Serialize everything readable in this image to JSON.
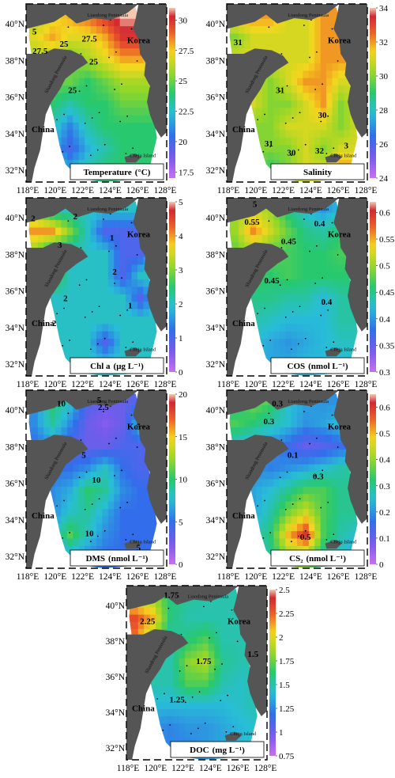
{
  "chart_data": [
    {
      "type": "heatmap",
      "title": "Temperature (°C)",
      "title_main": "Temperature",
      "title_unit": "(°C)",
      "xticks": [
        "118°E",
        "120°E",
        "122°E",
        "124°E",
        "126°E",
        "128°E"
      ],
      "yticks": [
        "40°N",
        "38°N",
        "36°N",
        "34°N",
        "32°N"
      ],
      "colorbar_ticks": [
        "17.5",
        "20",
        "22.5",
        "25",
        "27.5",
        "30"
      ],
      "colorbar_range": [
        17,
        31
      ],
      "contour_labels": [
        "5",
        "27.5",
        "25",
        "27.5",
        "25",
        "25"
      ],
      "grid": [
        [
          26,
          27,
          28,
          29,
          30,
          31,
          31,
          29
        ],
        [
          27,
          28,
          27,
          27,
          28,
          30,
          30,
          28
        ],
        [
          26,
          26,
          25,
          26,
          27,
          28,
          28,
          27
        ],
        [
          25,
          25,
          25,
          24,
          25,
          26,
          26,
          26
        ],
        [
          24,
          24,
          23,
          24,
          24,
          25,
          25,
          25
        ],
        [
          24,
          23,
          21,
          23,
          24,
          24,
          24,
          24
        ],
        [
          24,
          22,
          20,
          22,
          23,
          24,
          24,
          24
        ],
        [
          24,
          23,
          22,
          23,
          24,
          24,
          24,
          24
        ]
      ],
      "places": [
        "Korea",
        "China",
        "Liaodong Peninsula",
        "Shandong Peninsula",
        "Cheju Island"
      ]
    },
    {
      "type": "heatmap",
      "title": "Salinity",
      "title_main": "Salinity",
      "title_unit": "",
      "xticks": [
        "118°E",
        "120°E",
        "122°E",
        "124°E",
        "126°E",
        "128°E"
      ],
      "yticks": [
        "40°N",
        "38°N",
        "36°N",
        "34°N",
        "32°N"
      ],
      "colorbar_ticks": [
        "24",
        "26",
        "28",
        "30",
        "32",
        "34"
      ],
      "colorbar_range": [
        24,
        34
      ],
      "contour_labels": [
        "31",
        "31",
        "30",
        "31",
        "30",
        "32",
        "3"
      ],
      "grid": [
        [
          32,
          32,
          32,
          31,
          31,
          32,
          32,
          32
        ],
        [
          30,
          31,
          31,
          31,
          31,
          32,
          32,
          32
        ],
        [
          31,
          31,
          31,
          31,
          31,
          32,
          32,
          32
        ],
        [
          31,
          31,
          30,
          31,
          32,
          32,
          31,
          31
        ],
        [
          31,
          31,
          30,
          30,
          31,
          32,
          30,
          31
        ],
        [
          31,
          30,
          30,
          31,
          31,
          31,
          30,
          31
        ],
        [
          31,
          30,
          30,
          30,
          31,
          30,
          31,
          31
        ],
        [
          31,
          30,
          29,
          30,
          31,
          31,
          32,
          32
        ]
      ],
      "places": [
        "Korea",
        "China",
        "Liaodong Peninsula",
        "Shandong Peninsula",
        "Cheju Island"
      ]
    },
    {
      "type": "heatmap",
      "title": "Chl a (μg L⁻¹)",
      "title_main": "Chl a",
      "title_unit": "(μg L⁻¹)",
      "xticks": [
        "118°E",
        "120°E",
        "122°E",
        "124°E",
        "126°E",
        "128°E"
      ],
      "yticks": [
        "40°N",
        "38°N",
        "36°N",
        "34°N",
        "32°N"
      ],
      "colorbar_ticks": [
        "0",
        "1",
        "2",
        "3",
        "4",
        "5"
      ],
      "colorbar_range": [
        0,
        5
      ],
      "contour_labels": [
        "2",
        "3",
        "2",
        "1",
        "2",
        "2",
        "1",
        "2",
        "2"
      ],
      "grid": [
        [
          3,
          2,
          2,
          2,
          2,
          2,
          2,
          2
        ],
        [
          4,
          4,
          3,
          2,
          1,
          1,
          1,
          2
        ],
        [
          3,
          2,
          2,
          2,
          2,
          1,
          1,
          2
        ],
        [
          3,
          3,
          2,
          2,
          2,
          1,
          2,
          2
        ],
        [
          2,
          2,
          2,
          2,
          2,
          2,
          1,
          2
        ],
        [
          2,
          2,
          2,
          2,
          2,
          2,
          2,
          2
        ],
        [
          2,
          2,
          2,
          2,
          1,
          2,
          2,
          2
        ],
        [
          2,
          2,
          2,
          2,
          2,
          2,
          2,
          2
        ]
      ],
      "places": [
        "Korea",
        "China",
        "Liaodong Peninsula",
        "Shandong Peninsula",
        "Cheju Island"
      ]
    },
    {
      "type": "heatmap",
      "title": "COS (nmol L⁻¹)",
      "title_main": "COS",
      "title_unit": "(nmol L⁻¹)",
      "xticks": [
        "118°E",
        "120°E",
        "122°E",
        "124°E",
        "126°E",
        "128°E"
      ],
      "yticks": [
        "40°N",
        "38°N",
        "36°N",
        "34°N",
        "32°N"
      ],
      "colorbar_ticks": [
        "0.3",
        "0.35",
        "0.4",
        "0.45",
        "0.5",
        "0.55",
        "0.6"
      ],
      "colorbar_range": [
        0.3,
        0.62
      ],
      "contour_labels": [
        "5",
        "0.55",
        "0.4",
        "0.45",
        "0.45",
        "0.4"
      ],
      "grid": [
        [
          0.5,
          0.52,
          0.5,
          0.45,
          0.42,
          0.4,
          0.42,
          0.44
        ],
        [
          0.5,
          0.56,
          0.52,
          0.48,
          0.45,
          0.44,
          0.46,
          0.46
        ],
        [
          0.48,
          0.5,
          0.48,
          0.47,
          0.46,
          0.46,
          0.47,
          0.47
        ],
        [
          0.46,
          0.47,
          0.46,
          0.47,
          0.46,
          0.46,
          0.46,
          0.46
        ],
        [
          0.45,
          0.45,
          0.45,
          0.44,
          0.44,
          0.42,
          0.44,
          0.45
        ],
        [
          0.44,
          0.44,
          0.43,
          0.42,
          0.42,
          0.42,
          0.44,
          0.44
        ],
        [
          0.43,
          0.42,
          0.41,
          0.4,
          0.41,
          0.42,
          0.43,
          0.43
        ],
        [
          0.42,
          0.42,
          0.41,
          0.41,
          0.42,
          0.42,
          0.42,
          0.42
        ]
      ],
      "places": [
        "Korea",
        "China",
        "Liaodong Peninsula",
        "Shandong Peninsula",
        "Cheju Island"
      ]
    },
    {
      "type": "heatmap",
      "title": "DMS (nmol L⁻¹)",
      "title_main": "DMS",
      "title_unit": "(nmol L⁻¹)",
      "xticks": [
        "118°E",
        "120°E",
        "122°E",
        "124°E",
        "126°E",
        "128°E"
      ],
      "yticks": [
        "40°N",
        "38°N",
        "36°N",
        "34°N",
        "32°N"
      ],
      "colorbar_ticks": [
        "0",
        "5",
        "10",
        "15",
        "20"
      ],
      "colorbar_range": [
        0,
        20
      ],
      "contour_labels": [
        "10",
        "5",
        "2.5",
        "5",
        "5",
        "10",
        "10",
        "5"
      ],
      "grid": [
        [
          6,
          10,
          8,
          4,
          3,
          3,
          4,
          5
        ],
        [
          6,
          9,
          6,
          3,
          2,
          3,
          8,
          5
        ],
        [
          5,
          6,
          4,
          3,
          3,
          4,
          4,
          4
        ],
        [
          5,
          5,
          5,
          6,
          8,
          5,
          4,
          4
        ],
        [
          5,
          6,
          7,
          10,
          9,
          6,
          5,
          5
        ],
        [
          5,
          6,
          8,
          9,
          7,
          5,
          5,
          5
        ],
        [
          5,
          7,
          11,
          8,
          6,
          5,
          5,
          5
        ],
        [
          5,
          6,
          7,
          6,
          5,
          5,
          5,
          5
        ]
      ],
      "places": [
        "Korea",
        "China",
        "Liaodong Peninsula",
        "Shandong Peninsula",
        "Cheju Island"
      ]
    },
    {
      "type": "heatmap",
      "title": "CS₂ (nmol L⁻¹)",
      "title_main": "CS₂",
      "title_unit": "(nmol L⁻¹)",
      "xticks": [
        "118°E",
        "120°E",
        "122°E",
        "124°E",
        "126°E",
        "128°E"
      ],
      "yticks": [
        "40°N",
        "38°N",
        "36°N",
        "34°N",
        "32°N"
      ],
      "colorbar_ticks": [
        "0",
        "0.1",
        "0.2",
        "0.3",
        "0.4",
        "0.5",
        "0.6"
      ],
      "colorbar_range": [
        0,
        0.65
      ],
      "contour_labels": [
        "0.3",
        "0.3",
        "0.1",
        "0.3",
        "0.5",
        "0."
      ],
      "grid": [
        [
          0.3,
          0.38,
          0.35,
          0.25,
          0.22,
          0.2,
          0.2,
          0.2
        ],
        [
          0.35,
          0.32,
          0.28,
          0.25,
          0.2,
          0.22,
          0.25,
          0.2
        ],
        [
          0.25,
          0.22,
          0.2,
          0.15,
          0.1,
          0.12,
          0.15,
          0.18
        ],
        [
          0.2,
          0.2,
          0.18,
          0.2,
          0.22,
          0.25,
          0.28,
          0.3
        ],
        [
          0.2,
          0.22,
          0.25,
          0.3,
          0.35,
          0.35,
          0.3,
          0.3
        ],
        [
          0.2,
          0.22,
          0.28,
          0.38,
          0.45,
          0.35,
          0.3,
          0.3
        ],
        [
          0.2,
          0.25,
          0.32,
          0.5,
          0.6,
          0.35,
          0.28,
          0.25
        ],
        [
          0.2,
          0.22,
          0.3,
          0.4,
          0.4,
          0.3,
          0.25,
          0.2
        ]
      ],
      "places": [
        "Korea",
        "China",
        "Liaodong Peninsula",
        "Shandong Peninsula",
        "Cheju Island"
      ]
    },
    {
      "type": "heatmap",
      "title": "DOC (mg L⁻¹)",
      "title_main": "DOC",
      "title_unit": "(mg L⁻¹)",
      "xticks": [
        "118°E",
        "120°E",
        "122°E",
        "124°E",
        "126°E",
        "128°E"
      ],
      "yticks": [
        "40°N",
        "38°N",
        "36°N",
        "34°N",
        "32°N"
      ],
      "colorbar_ticks": [
        "0.75",
        "1",
        "1.25",
        "1.5",
        "1.75",
        "2",
        "2.25",
        "2.5"
      ],
      "colorbar_range": [
        0.75,
        2.5
      ],
      "contour_labels": [
        "1.75",
        "2.25",
        "1.75",
        "1.5",
        "1.25"
      ],
      "grid": [
        [
          1.9,
          1.85,
          1.6,
          1.55,
          1.5,
          1.5,
          1.5,
          1.5
        ],
        [
          2.3,
          2.1,
          1.6,
          1.5,
          1.5,
          1.5,
          1.5,
          1.5
        ],
        [
          2.2,
          1.8,
          1.5,
          1.6,
          1.7,
          1.5,
          1.5,
          1.5
        ],
        [
          1.7,
          1.5,
          1.5,
          1.8,
          1.9,
          1.55,
          1.5,
          1.5
        ],
        [
          1.5,
          1.5,
          1.5,
          1.7,
          1.7,
          1.5,
          1.45,
          1.5
        ],
        [
          1.4,
          1.4,
          1.4,
          1.4,
          1.4,
          1.4,
          1.45,
          1.5
        ],
        [
          1.35,
          1.3,
          1.25,
          1.3,
          1.3,
          1.35,
          1.4,
          1.45
        ],
        [
          1.35,
          1.3,
          1.25,
          1.25,
          1.3,
          1.35,
          1.4,
          1.45
        ]
      ],
      "places": [
        "Korea",
        "China",
        "Liaodong Peninsula",
        "Shandong Peninsula",
        "Cheju Island"
      ]
    }
  ]
}
